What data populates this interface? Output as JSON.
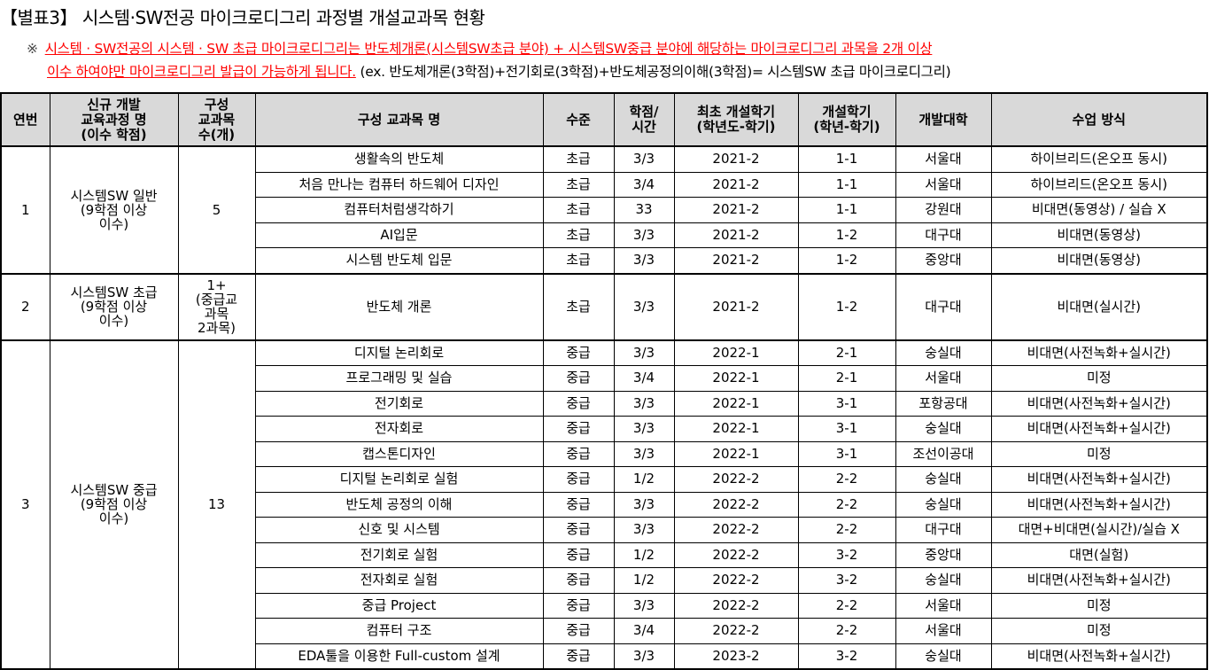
{
  "title": "【별표3】 시스템·SW전공 마이크로디그리 과정별 개설교과목 현황",
  "note": {
    "mark": "※",
    "red_line1": "시스템 · SW전공의 시스템 · SW 초급 마이크로디그리는 반도체개론(시스템SW초급 분야) + 시스템SW중급 분야에 해당하는 마이크로디그리 과목을 2개 이상",
    "red_line2": "이수 하여야만 마이크로디그리 발급이 가능하게 됩니다.",
    "example": " (ex. 반도체개론(3학점)+전기회로(3학점)+반도체공정의이해(3학점)= 시스템SW 초급 마이크로디그리)"
  },
  "colors": {
    "header_bg": "#d9d9d9",
    "note_red": "#ff0000"
  },
  "table": {
    "headers": [
      "연번",
      "신규 개발\n교육과정 명\n(이수 학점)",
      "구성\n교과목\n수(개)",
      "구성 교과목 명",
      "수준",
      "학점/\n시간",
      "최초 개설학기\n(학년도-학기)",
      "개설학기\n(학년-학기)",
      "개발대학",
      "수업 방식"
    ],
    "groups": [
      {
        "no": "1",
        "program": "시스템SW 일반\n(9학점 이상\n이수)",
        "count": "5",
        "courses": [
          [
            "생활속의 반도체",
            "초급",
            "3/3",
            "2021-2",
            "1-1",
            "서울대",
            "하이브리드(온오프 동시)"
          ],
          [
            "처음 만나는 컴퓨터 하드웨어 디자인",
            "초급",
            "3/4",
            "2021-2",
            "1-1",
            "서울대",
            "하이브리드(온오프 동시)"
          ],
          [
            "컴퓨터처럼생각하기",
            "초급",
            "33",
            "2021-2",
            "1-1",
            "강원대",
            "비대면(동영상) / 실습 X"
          ],
          [
            "AI입문",
            "초급",
            "3/3",
            "2021-2",
            "1-2",
            "대구대",
            "비대면(동영상)"
          ],
          [
            "시스템 반도체 입문",
            "초급",
            "3/3",
            "2021-2",
            "1-2",
            "중앙대",
            "비대면(동영상)"
          ]
        ]
      },
      {
        "no": "2",
        "program": "시스템SW 초급\n(9학점 이상\n이수)",
        "count": "1+\n(중급교\n과목\n2과목)",
        "courses": [
          [
            "반도체 개론",
            "초급",
            "3/3",
            "2021-2",
            "1-2",
            "대구대",
            "비대면(실시간)"
          ]
        ]
      },
      {
        "no": "3",
        "program": "시스템SW 중급\n(9학점 이상\n이수)",
        "count": "13",
        "courses": [
          [
            "디지털 논리회로",
            "중급",
            "3/3",
            "2022-1",
            "2-1",
            "숭실대",
            "비대면(사전녹화+실시간)"
          ],
          [
            "프로그래밍 및 실습",
            "중급",
            "3/4",
            "2022-1",
            "2-1",
            "서울대",
            "미정"
          ],
          [
            "전기회로",
            "중급",
            "3/3",
            "2022-1",
            "3-1",
            "포항공대",
            "비대면(사전녹화+실시간)"
          ],
          [
            "전자회로",
            "중급",
            "3/3",
            "2022-1",
            "3-1",
            "숭실대",
            "비대면(사전녹화+실시간)"
          ],
          [
            "캡스톤디자인",
            "중급",
            "3/3",
            "2022-1",
            "3-1",
            "조선이공대",
            "미정"
          ],
          [
            "디지털 논리회로 실험",
            "중급",
            "1/2",
            "2022-2",
            "2-2",
            "숭실대",
            "비대면(사전녹화+실시간)"
          ],
          [
            "반도체 공정의 이해",
            "중급",
            "3/3",
            "2022-2",
            "2-2",
            "숭실대",
            "비대면(사전녹화+실시간)"
          ],
          [
            "신호 및 시스템",
            "중급",
            "3/3",
            "2022-2",
            "2-2",
            "대구대",
            "대면+비대면(실시간)/실습 X"
          ],
          [
            "전기회로 실험",
            "중급",
            "1/2",
            "2022-2",
            "3-2",
            "중앙대",
            "대면(실험)"
          ],
          [
            "전자회로 실험",
            "중급",
            "1/2",
            "2022-2",
            "3-2",
            "숭실대",
            "비대면(사전녹화+실시간)"
          ],
          [
            "중급 Project",
            "중급",
            "3/3",
            "2022-2",
            "2-2",
            "서울대",
            "미정"
          ],
          [
            "컴퓨터 구조",
            "중급",
            "3/4",
            "2022-2",
            "2-2",
            "서울대",
            "미정"
          ],
          [
            "EDA툴을 이용한 Full-custom 설계",
            "중급",
            "3/3",
            "2023-2",
            "3-2",
            "숭실대",
            "비대면(사전녹화+실시간)"
          ]
        ]
      }
    ]
  }
}
